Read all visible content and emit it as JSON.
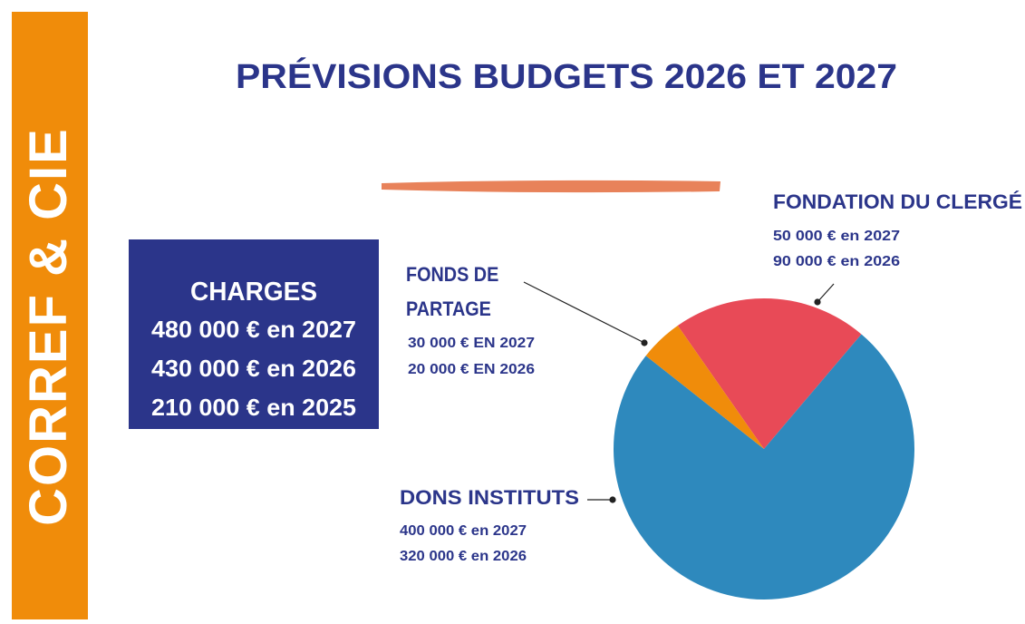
{
  "brand": "CORREF & CIE",
  "charges": {
    "title": "CHARGES",
    "lines": [
      "480 000 € en 2027",
      "430 000 € en 2026",
      "210 000 € en 2025"
    ]
  },
  "chart_data": {
    "type": "pie",
    "title": "PRÉVISIONS BUDGETS 2026 ET 2027",
    "categories": [
      "FONDATION DU CLERGÉ",
      "DONS INSTITUTS",
      "FONDS DE PARTAGE"
    ],
    "values": [
      90000,
      320000,
      20000
    ],
    "value_labels": [
      "90 000 € en 2026",
      "320 000 € en 2026",
      "20 000 € EN 2026"
    ],
    "forecast_labels": [
      "50 000 € en 2027",
      "400 000 € en 2027",
      "30 000 € EN 2027"
    ],
    "colors": [
      "#e84a57",
      "#2e89bd",
      "#f08c0a"
    ]
  }
}
